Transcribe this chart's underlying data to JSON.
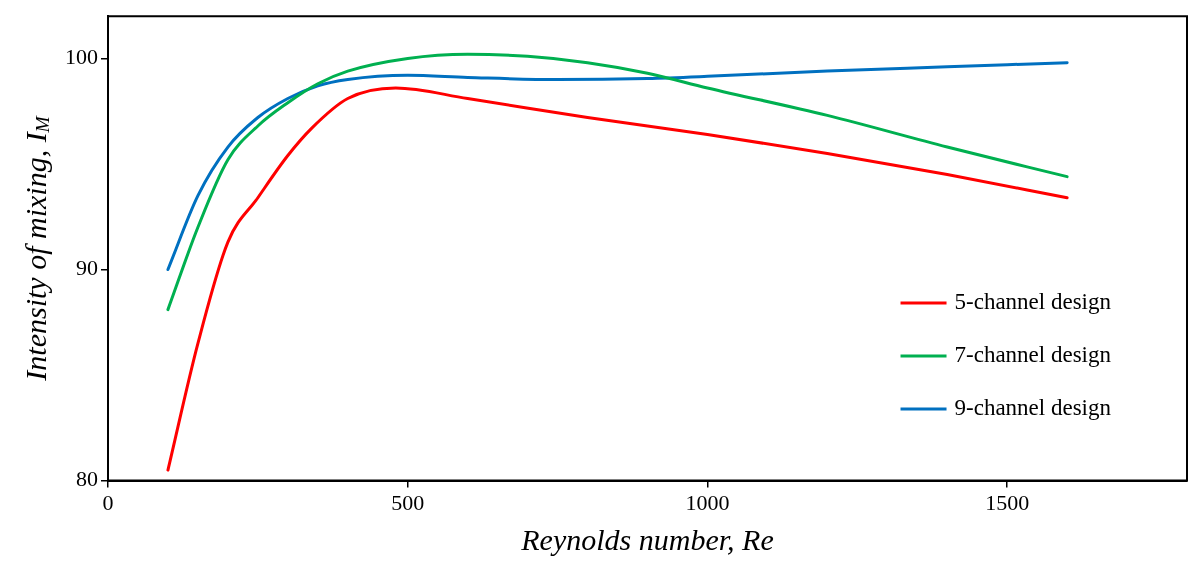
{
  "chart_data": {
    "type": "line",
    "xlabel": "Reynolds number, Re",
    "ylabel": "Intensity of mixing, I$_{M}$",
    "xlim": [
      0,
      1800
    ],
    "xticks": [
      0,
      500,
      1000,
      1500
    ],
    "ylim": [
      80,
      102
    ],
    "yticks": [
      80,
      90,
      100
    ],
    "grid": false,
    "legend": "bottom right",
    "marker": "none",
    "line_style": "solid",
    "series": [
      {
        "name": "5-channel design",
        "color": "#ff0000",
        "x": [
          100,
          150,
          200,
          250,
          300,
          340,
          400,
          480,
          600,
          800,
          1000,
          1200,
          1400,
          1600
        ],
        "values": [
          80.5,
          86.5,
          91.3,
          93.4,
          95.4,
          96.7,
          98.1,
          98.6,
          98.1,
          97.2,
          96.4,
          95.5,
          94.5,
          93.4
        ]
      },
      {
        "name": "7-channel design",
        "color": "#00b050",
        "x": [
          100,
          150,
          200,
          250,
          300,
          350,
          400,
          500,
          600,
          700,
          800,
          900,
          1000,
          1200,
          1400,
          1600
        ],
        "values": [
          88.1,
          92,
          95.2,
          96.8,
          97.9,
          98.8,
          99.4,
          100,
          100.2,
          100.1,
          99.8,
          99.3,
          98.6,
          97.3,
          95.8,
          94.4
        ]
      },
      {
        "name": "9-channel design",
        "color": "#0070c0",
        "x": [
          100,
          150,
          200,
          250,
          300,
          350,
          400,
          500,
          600,
          750,
          900,
          1000,
          1200,
          1400,
          1600
        ],
        "values": [
          90,
          93.5,
          95.8,
          97.2,
          98.1,
          98.7,
          99,
          99.2,
          99.1,
          99,
          99.05,
          99.15,
          99.4,
          99.6,
          99.8
        ]
      }
    ]
  }
}
